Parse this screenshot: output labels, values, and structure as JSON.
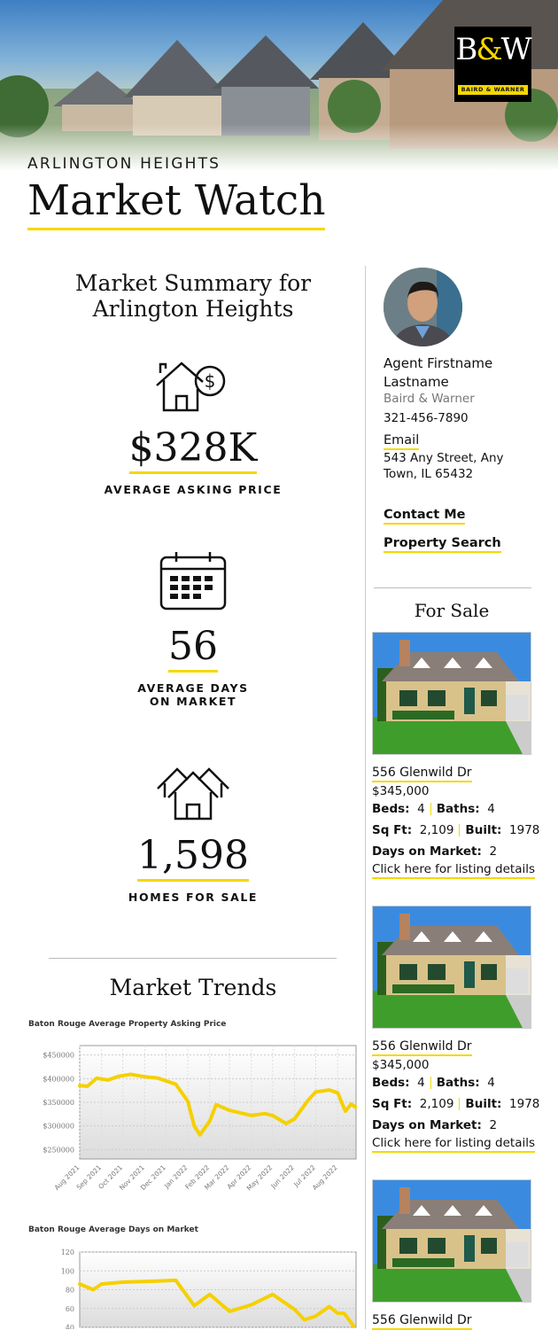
{
  "header": {
    "city": "ARLINGTON HEIGHTS",
    "title": "Market Watch",
    "logo": {
      "mark": "B&W",
      "name": "BAIRD & WARNER"
    }
  },
  "summary": {
    "heading_line1": "Market Summary for",
    "heading_line2": "Arlington Heights",
    "stats": [
      {
        "icon": "house-dollar-icon",
        "value": "$328K",
        "label": "AVERAGE ASKING PRICE"
      },
      {
        "icon": "calendar-icon",
        "value": "56",
        "label_line1": "AVERAGE DAYS",
        "label_line2": "ON MARKET"
      },
      {
        "icon": "houses-icon",
        "value": "1,598",
        "label": "HOMES FOR SALE"
      }
    ]
  },
  "trends": {
    "heading": "Market Trends"
  },
  "agent": {
    "name_line1": "Agent Firstname",
    "name_line2": "Lastname",
    "company": "Baird & Warner",
    "phone": "321-456-7890",
    "email_label": "Email",
    "address_line1": "543 Any Street, Any",
    "address_line2": "Town, IL 65432",
    "contact_label": "Contact Me",
    "search_label": "Property Search"
  },
  "for_sale": {
    "heading": "For Sale",
    "listings": [
      {
        "address": "556 Glenwild Dr",
        "price": "$345,000",
        "beds_label": "Beds:",
        "beds": "4",
        "baths_label": "Baths:",
        "baths": "4",
        "sqft_label": "Sq Ft:",
        "sqft": "2,109",
        "built_label": "Built:",
        "built": "1978",
        "dom_label": "Days on Market:",
        "dom": "2",
        "link": "Click here for listing details"
      },
      {
        "address": "556 Glenwild Dr",
        "price": "$345,000",
        "beds_label": "Beds:",
        "beds": "4",
        "baths_label": "Baths:",
        "baths": "4",
        "sqft_label": "Sq Ft:",
        "sqft": "2,109",
        "built_label": "Built:",
        "built": "1978",
        "dom_label": "Days on Market:",
        "dom": "2",
        "link": "Click here for listing details"
      },
      {
        "address": "556 Glenwild Dr"
      }
    ]
  },
  "colors": {
    "accent": "#f5d800",
    "line": "#f5d000"
  },
  "chart_data": [
    {
      "type": "line",
      "title": "Baton Rouge Average Property Asking Price",
      "xlabel": "",
      "ylabel": "",
      "ylim": [
        230000,
        470000
      ],
      "xlim": [
        "2021-08-01",
        "2022-08-27"
      ],
      "grid": true,
      "yticks": [
        "$450000",
        "$400000",
        "$350000",
        "$300000",
        "$250000"
      ],
      "ytick_values": [
        450000,
        400000,
        350000,
        300000,
        250000
      ],
      "xticks": [
        "Aug 2021",
        "Sep 2021",
        "Oct 2021",
        "Nov 2021",
        "Dec 2021",
        "Jan 2022",
        "Feb 2022",
        "Mar 2022",
        "Apr 2022",
        "May 2022",
        "Jun 2022",
        "Jul 2022",
        "Aug 2022"
      ],
      "xtick_dates": [
        "2021-08-01",
        "2021-09-01",
        "2021-10-01",
        "2021-11-01",
        "2021-12-01",
        "2022-01-01",
        "2022-02-01",
        "2022-03-01",
        "2022-04-01",
        "2022-05-01",
        "2022-06-01",
        "2022-07-01",
        "2022-08-01"
      ],
      "x": [
        "2021-08-01",
        "2021-08-12",
        "2021-08-25",
        "2021-09-10",
        "2021-09-25",
        "2021-10-12",
        "2021-11-01",
        "2021-11-20",
        "2021-12-15",
        "2022-01-01",
        "2022-01-10",
        "2022-01-18",
        "2022-02-01",
        "2022-02-10",
        "2022-03-01",
        "2022-03-15",
        "2022-04-01",
        "2022-04-20",
        "2022-05-01",
        "2022-05-20",
        "2022-06-01",
        "2022-06-20",
        "2022-07-01",
        "2022-07-20",
        "2022-08-01",
        "2022-08-12",
        "2022-08-20",
        "2022-08-26"
      ],
      "y": [
        385000,
        384000,
        401000,
        397000,
        405000,
        409000,
        404000,
        401000,
        388000,
        352000,
        300000,
        281000,
        310000,
        345000,
        333000,
        328000,
        322000,
        326000,
        322000,
        305000,
        315000,
        354000,
        372000,
        376000,
        370000,
        331000,
        346000,
        340000
      ]
    },
    {
      "type": "line",
      "title": "Baton Rouge Average Days on Market",
      "xlabel": "",
      "ylabel": "",
      "ylim": [
        40,
        120
      ],
      "xlim": [
        "2021-08-01",
        "2022-08-27"
      ],
      "grid": true,
      "yticks": [
        "120",
        "100",
        "80",
        "60",
        "40"
      ],
      "ytick_values": [
        120,
        100,
        80,
        60,
        40
      ],
      "x": [
        "2021-08-01",
        "2021-08-20",
        "2021-09-01",
        "2021-10-01",
        "2021-11-15",
        "2021-12-15",
        "2022-01-10",
        "2022-02-01",
        "2022-03-01",
        "2022-04-01",
        "2022-05-01",
        "2022-06-01",
        "2022-06-15",
        "2022-07-01",
        "2022-07-20",
        "2022-08-01",
        "2022-08-10",
        "2022-08-24"
      ],
      "y": [
        86,
        80,
        86,
        88,
        89,
        90,
        63,
        75,
        57,
        64,
        75,
        59,
        48,
        52,
        62,
        55,
        55,
        41
      ]
    }
  ]
}
